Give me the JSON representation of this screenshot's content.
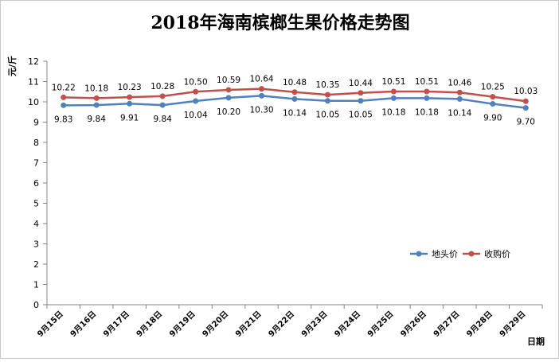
{
  "chart_data": {
    "type": "line",
    "title": "2018年海南槟榔生果价格走势图",
    "xlabel": "日期",
    "ylabel": "元/斤",
    "ylim": [
      0,
      12
    ],
    "yticks": [
      0,
      1,
      2,
      3,
      4,
      5,
      6,
      7,
      8,
      9,
      10,
      11,
      12
    ],
    "grid": false,
    "legend_position": "bottom-right",
    "categories": [
      "9月15日",
      "9月16日",
      "9月17日",
      "9月18日",
      "9月19日",
      "9月20日",
      "9月21日",
      "9月22日",
      "9月23日",
      "9月24日",
      "9月25日",
      "9月26日",
      "9月27日",
      "9月28日",
      "9月29日"
    ],
    "series": [
      {
        "name": "地头价",
        "color": "#4f81bd",
        "values": [
          9.83,
          9.84,
          9.91,
          9.84,
          10.04,
          10.2,
          10.3,
          10.14,
          10.05,
          10.05,
          10.18,
          10.18,
          10.14,
          9.9,
          9.7
        ],
        "labels": [
          "9.83",
          "9.84",
          "9.91",
          "9.84",
          "10.04",
          "10.20",
          "10.30",
          "10.14",
          "10.05",
          "10.05",
          "10.18",
          "10.18",
          "10.14",
          "9.90",
          "9.70"
        ]
      },
      {
        "name": "收购价",
        "color": "#c0504d",
        "values": [
          10.22,
          10.18,
          10.23,
          10.28,
          10.5,
          10.59,
          10.64,
          10.48,
          10.35,
          10.44,
          10.51,
          10.51,
          10.46,
          10.25,
          10.03
        ],
        "labels": [
          "10.22",
          "10.18",
          "10.23",
          "10.28",
          "10.50",
          "10.59",
          "10.64",
          "10.48",
          "10.35",
          "10.44",
          "10.51",
          "10.51",
          "10.46",
          "10.25",
          "10.03"
        ]
      }
    ]
  }
}
